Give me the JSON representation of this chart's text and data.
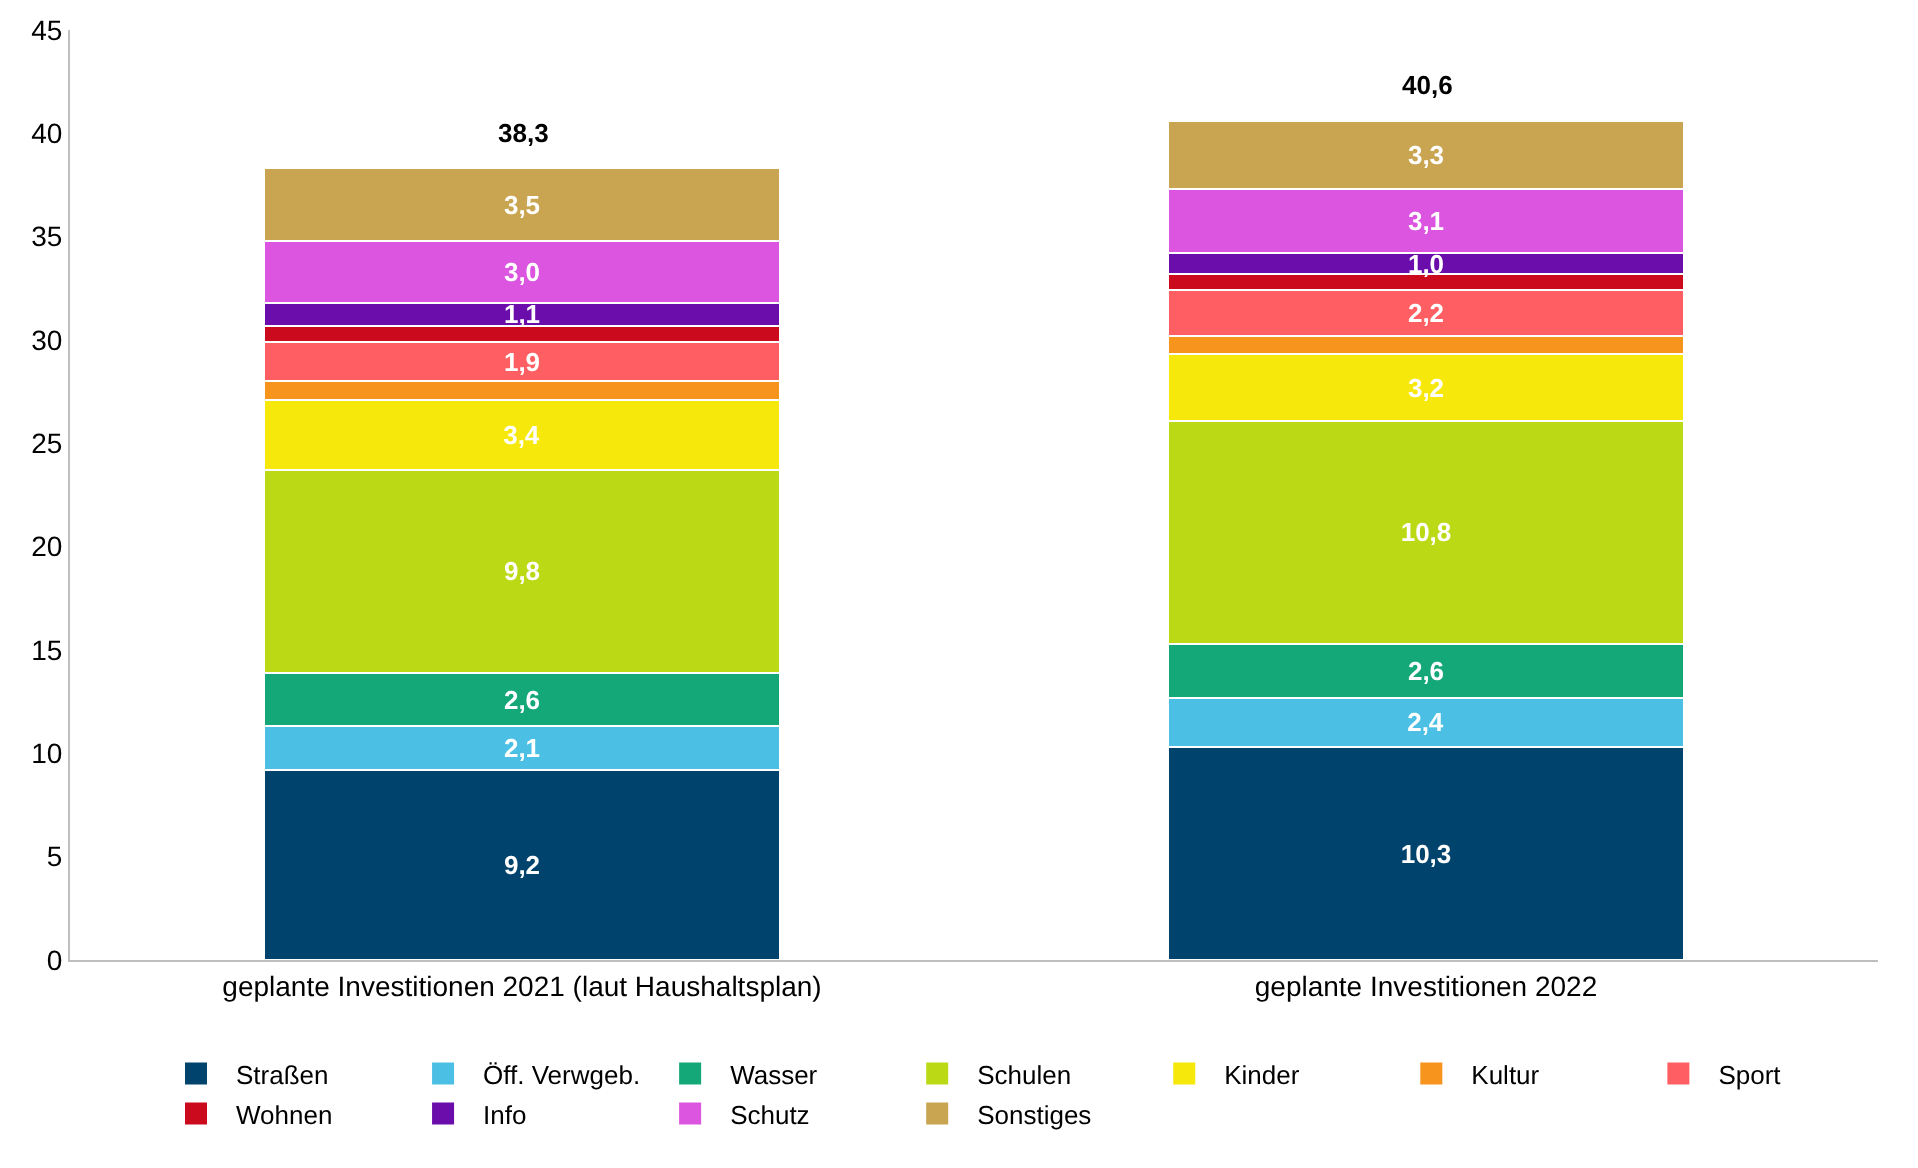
{
  "chart_data": {
    "type": "bar",
    "stacked": true,
    "categories": [
      "geplante Investitionen 2021 (laut Haushaltsplan)",
      "geplante Investitionen 2022"
    ],
    "series": [
      {
        "name": "Straßen",
        "color": "#00446e",
        "values": [
          9.2,
          10.3
        ],
        "value_labels": [
          "9,2",
          "10,3"
        ]
      },
      {
        "name": "Öff. Verwgeb.",
        "color": "#4bc0e4",
        "values": [
          2.1,
          2.4
        ],
        "value_labels": [
          "2,1",
          "2,4"
        ]
      },
      {
        "name": "Wasser",
        "color": "#14a878",
        "values": [
          2.6,
          2.6
        ],
        "value_labels": [
          "2,6",
          "2,6"
        ]
      },
      {
        "name": "Schulen",
        "color": "#bcd916",
        "values": [
          9.8,
          10.8
        ],
        "value_labels": [
          "9,8",
          "10,8"
        ]
      },
      {
        "name": "Kinder",
        "color": "#f5e80a",
        "values": [
          3.4,
          3.2
        ],
        "value_labels": [
          "3,4",
          "3,2"
        ]
      },
      {
        "name": "Kultur",
        "color": "#f7941d",
        "values": [
          0.9,
          0.9
        ],
        "value_labels": [
          null,
          null
        ]
      },
      {
        "name": "Sport",
        "color": "#ff5f63",
        "values": [
          1.9,
          2.2
        ],
        "value_labels": [
          "1,9",
          "2,2"
        ]
      },
      {
        "name": "Wohnen",
        "color": "#cc0a1e",
        "values": [
          0.8,
          0.8
        ],
        "value_labels": [
          null,
          null
        ]
      },
      {
        "name": "Info",
        "color": "#6a0dab",
        "values": [
          1.1,
          1.0
        ],
        "value_labels": [
          "1,1",
          "1,0"
        ]
      },
      {
        "name": "Schutz",
        "color": "#db55e0",
        "values": [
          3.0,
          3.1
        ],
        "value_labels": [
          "3,0",
          "3,1"
        ]
      },
      {
        "name": "Sonstiges",
        "color": "#c9a552",
        "values": [
          3.5,
          3.3
        ],
        "value_labels": [
          "3,5",
          "3,3"
        ]
      }
    ],
    "totals": [
      "38,3",
      "40,6"
    ],
    "ylim": [
      0,
      45
    ],
    "yticks": [
      0,
      5,
      10,
      15,
      20,
      25,
      30,
      35,
      40,
      45
    ],
    "grid": false,
    "legend": "bottom"
  }
}
